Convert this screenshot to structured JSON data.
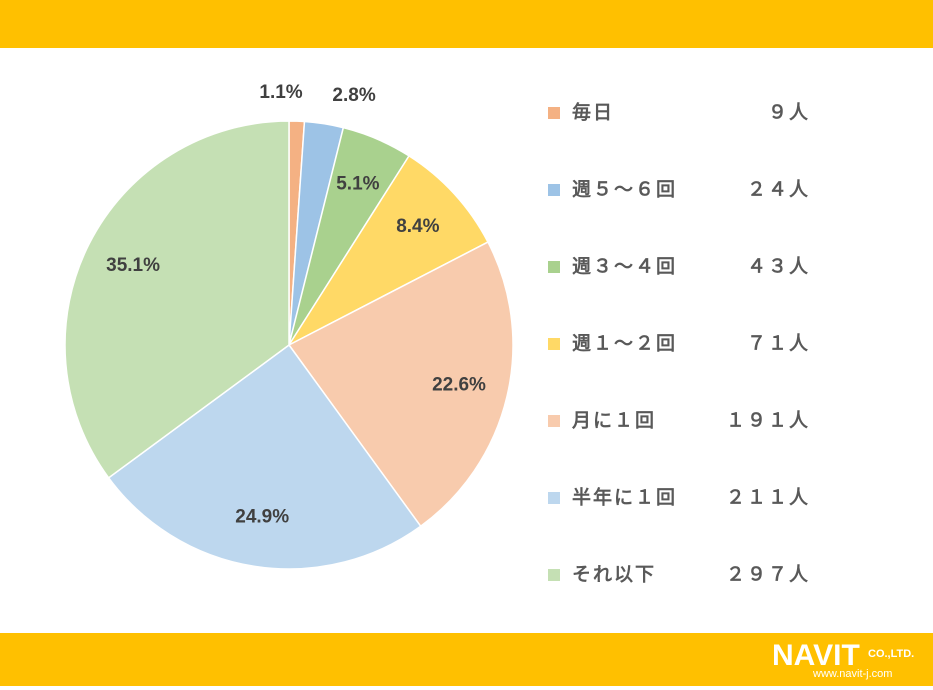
{
  "chart_data": {
    "type": "pie",
    "categories": [
      "毎日",
      "週５～６回",
      "週３～４回",
      "週１～２回",
      "月に１回",
      "半年に１回",
      "それ以下"
    ],
    "values": [
      1.1,
      2.8,
      5.1,
      8.4,
      22.6,
      24.9,
      35.1
    ],
    "value_labels": [
      "1.1%",
      "2.8%",
      "5.1%",
      "8.4%",
      "22.6%",
      "24.9%",
      "35.1%"
    ],
    "count_labels": [
      "９人",
      "２４人",
      "４３人",
      "７１人",
      "１９１人",
      "２１１人",
      "２９７人"
    ],
    "colors": [
      "#f4b183",
      "#9dc3e6",
      "#a9d18e",
      "#ffd966",
      "#f8cbad",
      "#bdd7ee",
      "#c5e0b4"
    ],
    "legend": "right"
  },
  "footer": {
    "logo": "NAVIT",
    "company": "CO.,LTD.",
    "url": "www.navit-j.com"
  }
}
